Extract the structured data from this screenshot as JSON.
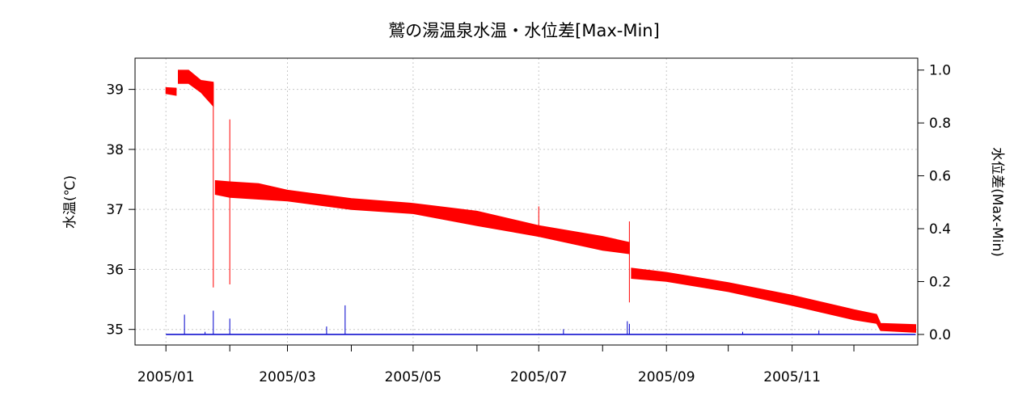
{
  "chart_data": {
    "type": "line",
    "title": "鷲の湯温泉水温・水位差[Max-Min]",
    "ylabel_left": "水温(℃)",
    "ylabel_right": "水位差(Max-Min)",
    "xlabel": "",
    "x_tick_labels": [
      "2005/01",
      "2005/03",
      "2005/05",
      "2005/07",
      "2005/09",
      "2005/11"
    ],
    "x_minor_ticks": [
      "2005/02",
      "2005/04",
      "2005/06",
      "2005/08",
      "2005/10",
      "2005/12"
    ],
    "xlim": [
      "2004-12-17",
      "2006-01-01"
    ],
    "y_left_ticks": [
      "35",
      "36",
      "37",
      "38",
      "39"
    ],
    "y_left_lim": [
      34.74,
      39.52
    ],
    "y_right_ticks": [
      "0.0",
      "0.2",
      "0.4",
      "0.6",
      "0.8",
      "1.0"
    ],
    "y_right_lim": [
      -0.04,
      1.045
    ],
    "grid": true,
    "series": [
      {
        "axis": "left",
        "color": "#ff0000",
        "points": [
          {
            "x": "2005-01-01",
            "low": 38.93,
            "high": 39.03
          },
          {
            "x": "2005-01-06",
            "low": 38.9,
            "high": 39.02
          },
          {
            "x": "2005-01-07",
            "low": 39.1,
            "high": 39.32
          },
          {
            "x": "2005-01-12",
            "low": 39.1,
            "high": 39.32
          },
          {
            "x": "2005-01-18",
            "low": 38.95,
            "high": 39.15
          },
          {
            "x": "2005-01-24",
            "low": 38.72,
            "high": 39.12
          },
          {
            "x": "2005-01-25",
            "low": 37.25,
            "high": 37.48
          },
          {
            "x": "2005-02-01",
            "low": 37.2,
            "high": 37.46
          },
          {
            "x": "2005-02-15",
            "low": 37.17,
            "high": 37.43
          },
          {
            "x": "2005-03-01",
            "low": 37.14,
            "high": 37.32
          },
          {
            "x": "2005-04-01",
            "low": 37.0,
            "high": 37.18
          },
          {
            "x": "2005-05-01",
            "low": 36.93,
            "high": 37.1
          },
          {
            "x": "2005-06-01",
            "low": 36.73,
            "high": 36.97
          },
          {
            "x": "2005-07-01",
            "low": 36.55,
            "high": 36.73
          },
          {
            "x": "2005-08-01",
            "low": 36.32,
            "high": 36.55
          },
          {
            "x": "2005-08-14",
            "low": 36.26,
            "high": 36.45
          },
          {
            "x": "2005-08-15",
            "low": 35.85,
            "high": 36.02
          },
          {
            "x": "2005-09-01",
            "low": 35.8,
            "high": 35.95
          },
          {
            "x": "2005-10-01",
            "low": 35.63,
            "high": 35.78
          },
          {
            "x": "2005-11-01",
            "low": 35.4,
            "high": 35.57
          },
          {
            "x": "2005-12-01",
            "low": 35.16,
            "high": 35.33
          },
          {
            "x": "2005-12-12",
            "low": 35.1,
            "high": 35.25
          },
          {
            "x": "2005-12-14",
            "low": 34.98,
            "high": 35.1
          },
          {
            "x": "2005-12-31",
            "low": 34.95,
            "high": 35.08
          }
        ],
        "spikes": [
          {
            "x": "2005-01-24",
            "low": 35.7,
            "high": 39.1
          },
          {
            "x": "2005-02-01",
            "low": 35.75,
            "high": 38.5
          },
          {
            "x": "2005-07-01",
            "low": 36.55,
            "high": 37.05
          },
          {
            "x": "2005-08-14",
            "low": 35.45,
            "high": 36.8
          }
        ]
      },
      {
        "axis": "right",
        "color": "#0000cc",
        "baseline": 0.0,
        "spikes": [
          {
            "x": "2005-01-10",
            "value": 0.075
          },
          {
            "x": "2005-01-20",
            "value": 0.01
          },
          {
            "x": "2005-01-24",
            "value": 0.09
          },
          {
            "x": "2005-02-01",
            "value": 0.06
          },
          {
            "x": "2005-03-20",
            "value": 0.03
          },
          {
            "x": "2005-03-29",
            "value": 0.11
          },
          {
            "x": "2005-07-13",
            "value": 0.02
          },
          {
            "x": "2005-08-13",
            "value": 0.05
          },
          {
            "x": "2005-08-14",
            "value": 0.04
          },
          {
            "x": "2005-10-08",
            "value": 0.01
          },
          {
            "x": "2005-11-14",
            "value": 0.015
          }
        ]
      }
    ]
  }
}
